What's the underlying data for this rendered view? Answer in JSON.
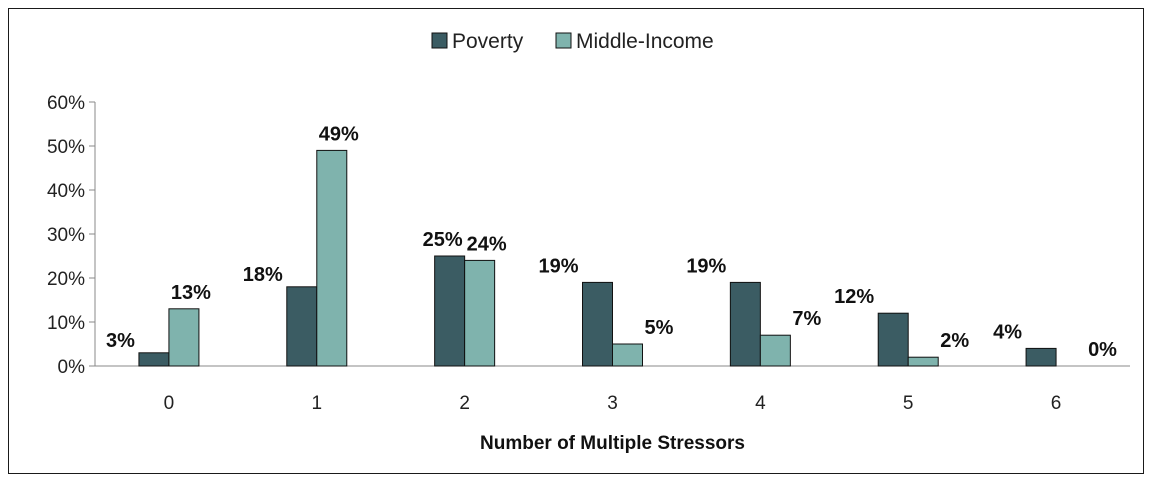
{
  "chart_data": {
    "type": "bar",
    "title": "",
    "xlabel": "Number of Multiple Stressors",
    "ylabel": "",
    "categories": [
      "0",
      "1",
      "2",
      "3",
      "4",
      "5",
      "6"
    ],
    "series": [
      {
        "name": "Poverty",
        "color": "#3b5c63",
        "values": [
          3,
          18,
          25,
          19,
          19,
          12,
          4
        ],
        "labels": [
          "3%",
          "18%",
          "25%",
          "19%",
          "19%",
          "12%",
          "4%"
        ]
      },
      {
        "name": "Middle-Income",
        "color": "#7fb3ad",
        "values": [
          13,
          49,
          24,
          5,
          7,
          2,
          0
        ],
        "labels": [
          "13%",
          "49%",
          "24%",
          "5%",
          "7%",
          "2%",
          "0%"
        ]
      }
    ],
    "ylim": [
      0,
      60
    ],
    "yticks": [
      0,
      10,
      20,
      30,
      40,
      50,
      60
    ],
    "ytick_labels": [
      "0%",
      "10%",
      "20%",
      "30%",
      "40%",
      "50%",
      "60%"
    ],
    "grid": false,
    "legend_position": "top-center"
  }
}
